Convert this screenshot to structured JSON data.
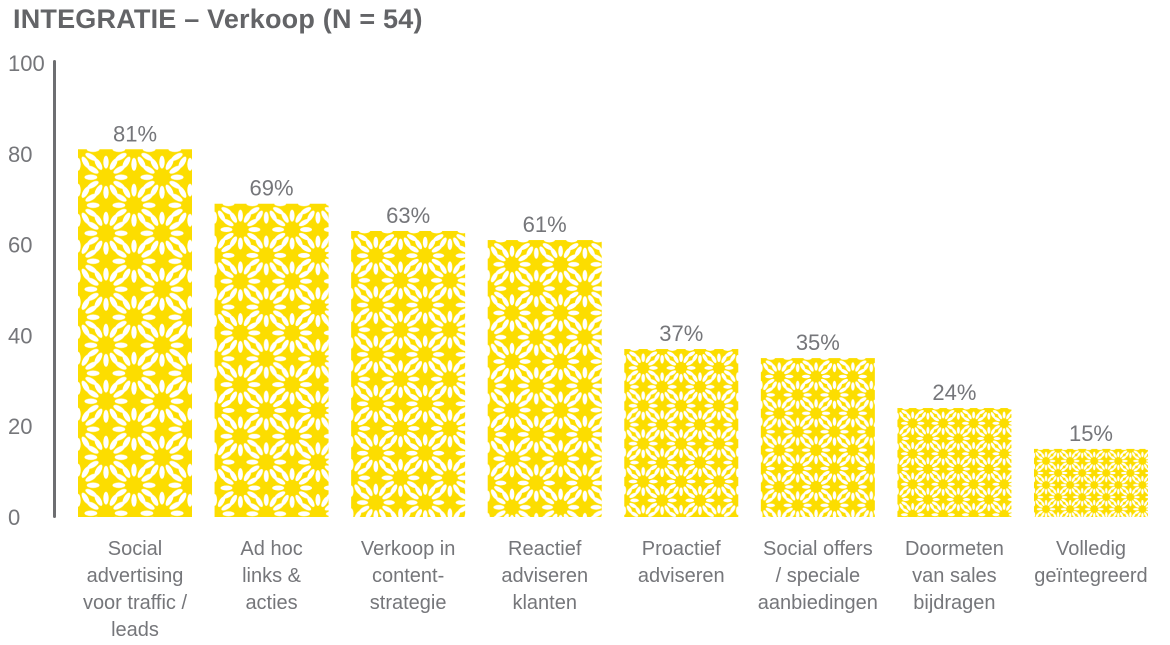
{
  "title": "INTEGRATIE – Verkoop (N = 54)",
  "colors": {
    "background": "#ffffff",
    "bar_fill": "#FCDD00",
    "pattern_petal": "#FFFFFF",
    "title_text": "#636467",
    "label_text": "#75767A",
    "axis_line": "#6D6E71"
  },
  "chart_data": {
    "type": "bar",
    "title": "INTEGRATIE – Verkoop (N = 54)",
    "sample_label": "N = 54",
    "unit": "%",
    "categories": [
      "Social advertising voor traffic / leads",
      "Ad hoc links & acties",
      "Verkoop in content-strategie",
      "Reactief adviseren klanten",
      "Proactief adviseren",
      "Social offers / speciale aanbiedingen",
      "Doormeten van sales bijdragen",
      "Volledig geïntegreerd"
    ],
    "category_lines": [
      [
        "Social",
        "advertising",
        "voor traffic /",
        "leads"
      ],
      [
        "Ad hoc",
        "links &",
        "acties"
      ],
      [
        "Verkoop in",
        "content-",
        "strategie"
      ],
      [
        "Reactief",
        "adviseren",
        "klanten"
      ],
      [
        "Proactief",
        "adviseren"
      ],
      [
        "Social offers",
        "/ speciale",
        "aanbiedingen"
      ],
      [
        "Doormeten",
        "van sales",
        "bijdragen"
      ],
      [
        "Volledig",
        "geïntegreerd"
      ]
    ],
    "values": [
      81,
      69,
      63,
      61,
      37,
      35,
      24,
      15
    ],
    "value_labels": [
      "81%",
      "69%",
      "63%",
      "61%",
      "37%",
      "35%",
      "24%",
      "15%"
    ],
    "ylim": [
      0,
      100
    ],
    "yticks": [
      0,
      20,
      40,
      60,
      80,
      100
    ],
    "grid": false,
    "legend": false
  }
}
